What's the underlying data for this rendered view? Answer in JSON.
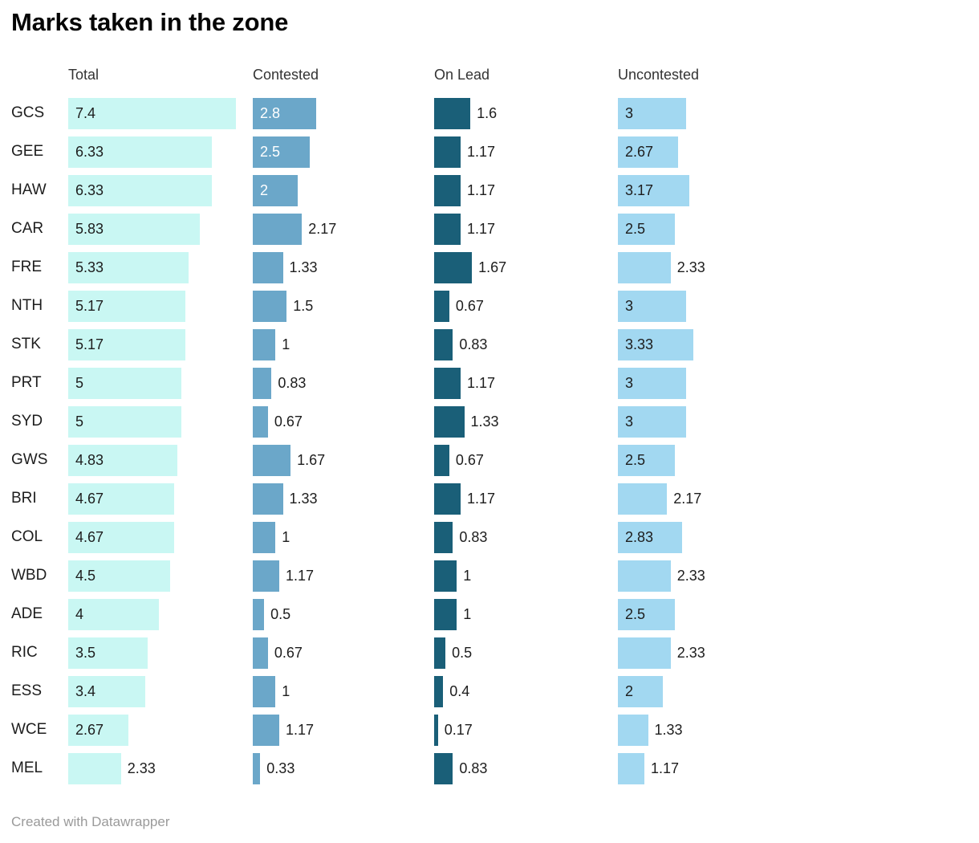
{
  "title": "Marks taken in the zone",
  "footer": "Created with Datawrapper",
  "columns": [
    {
      "key": "total",
      "label": "Total",
      "color": "#C9F7F3",
      "inside_text": "#1D1D1D"
    },
    {
      "key": "contested",
      "label": "Contested",
      "color": "#6BA7C9",
      "inside_text": "#FFFFFF"
    },
    {
      "key": "on-lead",
      "label": "On Lead",
      "color": "#1A5F78",
      "inside_text": "#FFFFFF"
    },
    {
      "key": "uncontested",
      "label": "Uncontested",
      "color": "#A2D8F1",
      "inside_text": "#1D1D1D"
    }
  ],
  "rows": [
    {
      "team": "GCS",
      "cells": [
        {
          "value": 7.4,
          "label": "7.4",
          "inside": true
        },
        {
          "value": 2.8,
          "label": "2.8",
          "inside": true
        },
        {
          "value": 1.6,
          "label": "1.6",
          "inside": false
        },
        {
          "value": 3,
          "label": "3",
          "inside": true
        }
      ]
    },
    {
      "team": "GEE",
      "cells": [
        {
          "value": 6.33,
          "label": "6.33",
          "inside": true
        },
        {
          "value": 2.5,
          "label": "2.5",
          "inside": true
        },
        {
          "value": 1.17,
          "label": "1.17",
          "inside": false
        },
        {
          "value": 2.67,
          "label": "2.67",
          "inside": true
        }
      ]
    },
    {
      "team": "HAW",
      "cells": [
        {
          "value": 6.33,
          "label": "6.33",
          "inside": true
        },
        {
          "value": 2,
          "label": "2",
          "inside": true
        },
        {
          "value": 1.17,
          "label": "1.17",
          "inside": false
        },
        {
          "value": 3.17,
          "label": "3.17",
          "inside": true
        }
      ]
    },
    {
      "team": "CAR",
      "cells": [
        {
          "value": 5.83,
          "label": "5.83",
          "inside": true
        },
        {
          "value": 2.17,
          "label": "2.17",
          "inside": false
        },
        {
          "value": 1.17,
          "label": "1.17",
          "inside": false
        },
        {
          "value": 2.5,
          "label": "2.5",
          "inside": true
        }
      ]
    },
    {
      "team": "FRE",
      "cells": [
        {
          "value": 5.33,
          "label": "5.33",
          "inside": true
        },
        {
          "value": 1.33,
          "label": "1.33",
          "inside": false
        },
        {
          "value": 1.67,
          "label": "1.67",
          "inside": false
        },
        {
          "value": 2.33,
          "label": "2.33",
          "inside": false
        }
      ]
    },
    {
      "team": "NTH",
      "cells": [
        {
          "value": 5.17,
          "label": "5.17",
          "inside": true
        },
        {
          "value": 1.5,
          "label": "1.5",
          "inside": false
        },
        {
          "value": 0.67,
          "label": "0.67",
          "inside": false
        },
        {
          "value": 3,
          "label": "3",
          "inside": true
        }
      ]
    },
    {
      "team": "STK",
      "cells": [
        {
          "value": 5.17,
          "label": "5.17",
          "inside": true
        },
        {
          "value": 1,
          "label": "1",
          "inside": false
        },
        {
          "value": 0.83,
          "label": "0.83",
          "inside": false
        },
        {
          "value": 3.33,
          "label": "3.33",
          "inside": true
        }
      ]
    },
    {
      "team": "PRT",
      "cells": [
        {
          "value": 5,
          "label": "5",
          "inside": true
        },
        {
          "value": 0.83,
          "label": "0.83",
          "inside": false
        },
        {
          "value": 1.17,
          "label": "1.17",
          "inside": false
        },
        {
          "value": 3,
          "label": "3",
          "inside": true
        }
      ]
    },
    {
      "team": "SYD",
      "cells": [
        {
          "value": 5,
          "label": "5",
          "inside": true
        },
        {
          "value": 0.67,
          "label": "0.67",
          "inside": false
        },
        {
          "value": 1.33,
          "label": "1.33",
          "inside": false
        },
        {
          "value": 3,
          "label": "3",
          "inside": true
        }
      ]
    },
    {
      "team": "GWS",
      "cells": [
        {
          "value": 4.83,
          "label": "4.83",
          "inside": true
        },
        {
          "value": 1.67,
          "label": "1.67",
          "inside": false
        },
        {
          "value": 0.67,
          "label": "0.67",
          "inside": false
        },
        {
          "value": 2.5,
          "label": "2.5",
          "inside": true
        }
      ]
    },
    {
      "team": "BRI",
      "cells": [
        {
          "value": 4.67,
          "label": "4.67",
          "inside": true
        },
        {
          "value": 1.33,
          "label": "1.33",
          "inside": false
        },
        {
          "value": 1.17,
          "label": "1.17",
          "inside": false
        },
        {
          "value": 2.17,
          "label": "2.17",
          "inside": false
        }
      ]
    },
    {
      "team": "COL",
      "cells": [
        {
          "value": 4.67,
          "label": "4.67",
          "inside": true
        },
        {
          "value": 1,
          "label": "1",
          "inside": false
        },
        {
          "value": 0.83,
          "label": "0.83",
          "inside": false
        },
        {
          "value": 2.83,
          "label": "2.83",
          "inside": true
        }
      ]
    },
    {
      "team": "WBD",
      "cells": [
        {
          "value": 4.5,
          "label": "4.5",
          "inside": true
        },
        {
          "value": 1.17,
          "label": "1.17",
          "inside": false
        },
        {
          "value": 1,
          "label": "1",
          "inside": false
        },
        {
          "value": 2.33,
          "label": "2.33",
          "inside": false
        }
      ]
    },
    {
      "team": "ADE",
      "cells": [
        {
          "value": 4,
          "label": "4",
          "inside": true
        },
        {
          "value": 0.5,
          "label": "0.5",
          "inside": false
        },
        {
          "value": 1,
          "label": "1",
          "inside": false
        },
        {
          "value": 2.5,
          "label": "2.5",
          "inside": true
        }
      ]
    },
    {
      "team": "RIC",
      "cells": [
        {
          "value": 3.5,
          "label": "3.5",
          "inside": true
        },
        {
          "value": 0.67,
          "label": "0.67",
          "inside": false
        },
        {
          "value": 0.5,
          "label": "0.5",
          "inside": false
        },
        {
          "value": 2.33,
          "label": "2.33",
          "inside": false
        }
      ]
    },
    {
      "team": "ESS",
      "cells": [
        {
          "value": 3.4,
          "label": "3.4",
          "inside": true
        },
        {
          "value": 1,
          "label": "1",
          "inside": false
        },
        {
          "value": 0.4,
          "label": "0.4",
          "inside": false
        },
        {
          "value": 2,
          "label": "2",
          "inside": true
        }
      ]
    },
    {
      "team": "WCE",
      "cells": [
        {
          "value": 2.67,
          "label": "2.67",
          "inside": true
        },
        {
          "value": 1.17,
          "label": "1.17",
          "inside": false
        },
        {
          "value": 0.17,
          "label": "0.17",
          "inside": false
        },
        {
          "value": 1.33,
          "label": "1.33",
          "inside": false
        }
      ]
    },
    {
      "team": "MEL",
      "cells": [
        {
          "value": 2.33,
          "label": "2.33",
          "inside": false
        },
        {
          "value": 0.33,
          "label": "0.33",
          "inside": false
        },
        {
          "value": 0.83,
          "label": "0.83",
          "inside": false
        },
        {
          "value": 1.17,
          "label": "1.17",
          "inside": false
        }
      ]
    }
  ],
  "chart_data": {
    "type": "bar",
    "orientation": "horizontal",
    "layout": "four aligned horizontal-bar columns (small multiples) with a shared linear scale, value labels shown, no gridlines, no axes",
    "title": "Marks taken in the zone",
    "categories": [
      "GCS",
      "GEE",
      "HAW",
      "CAR",
      "FRE",
      "NTH",
      "STK",
      "PRT",
      "SYD",
      "GWS",
      "BRI",
      "COL",
      "WBD",
      "ADE",
      "RIC",
      "ESS",
      "WCE",
      "MEL"
    ],
    "series": [
      {
        "name": "Total",
        "color": "#C9F7F3",
        "values": [
          7.4,
          6.33,
          6.33,
          5.83,
          5.33,
          5.17,
          5.17,
          5,
          5,
          4.83,
          4.67,
          4.67,
          4.5,
          4,
          3.5,
          3.4,
          2.67,
          2.33
        ]
      },
      {
        "name": "Contested",
        "color": "#6BA7C9",
        "values": [
          2.8,
          2.5,
          2,
          2.17,
          1.33,
          1.5,
          1,
          0.83,
          0.67,
          1.67,
          1.33,
          1,
          1.17,
          0.5,
          0.67,
          1,
          1.17,
          0.33
        ]
      },
      {
        "name": "On Lead",
        "color": "#1A5F78",
        "values": [
          1.6,
          1.17,
          1.17,
          1.17,
          1.67,
          0.67,
          0.83,
          1.17,
          1.33,
          0.67,
          1.17,
          0.83,
          1,
          1,
          0.5,
          0.4,
          0.17,
          0.83
        ]
      },
      {
        "name": "Uncontested",
        "color": "#A2D8F1",
        "values": [
          3,
          2.67,
          3.17,
          2.5,
          2.33,
          3,
          3.33,
          3,
          3,
          2.5,
          2.17,
          2.83,
          2.33,
          2.5,
          2.33,
          2,
          1.33,
          1.17
        ]
      }
    ],
    "xlim": [
      0,
      8
    ],
    "grid": false,
    "value_labels": true,
    "legend_position": "column headers"
  }
}
